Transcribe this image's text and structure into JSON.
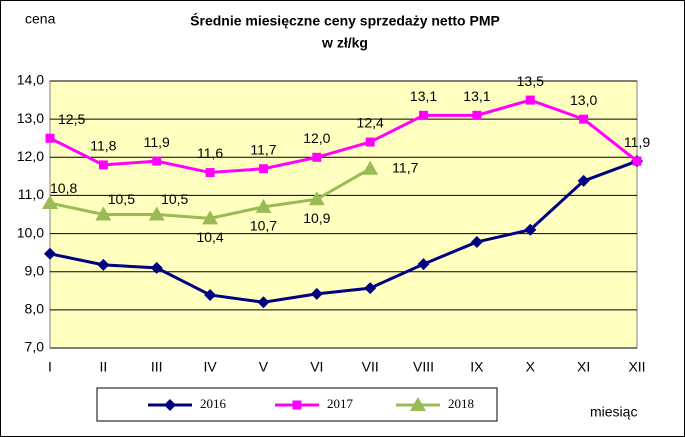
{
  "chart_data": {
    "type": "line",
    "title": "Średnie miesięczne ceny sprzedaży netto PMP",
    "subtitle": "w zł/kg",
    "y_label": "cena",
    "x_label": "miesiąc",
    "categories": [
      "I",
      "II",
      "III",
      "IV",
      "V",
      "VI",
      "VII",
      "VIII",
      "IX",
      "X",
      "XI",
      "XII"
    ],
    "ylim": [
      7,
      14
    ],
    "yticks": [
      {
        "value": 7,
        "label": "7,0"
      },
      {
        "value": 8,
        "label": "8,0"
      },
      {
        "value": 9,
        "label": "9,0"
      },
      {
        "value": 10,
        "label": "10,0"
      },
      {
        "value": 11,
        "label": "11,0"
      },
      {
        "value": 12,
        "label": "12,0"
      },
      {
        "value": 13,
        "label": "13,0"
      },
      {
        "value": 14,
        "label": "14,0"
      }
    ],
    "grid": true,
    "legend": "bottom",
    "series": [
      {
        "name": "2016",
        "color": "#000080",
        "marker": "diamond",
        "values": [
          9.47,
          9.18,
          9.1,
          8.39,
          8.2,
          8.42,
          8.57,
          9.2,
          9.78,
          10.1,
          11.38,
          11.9
        ]
      },
      {
        "name": "2017",
        "color": "#ff00ff",
        "marker": "square",
        "values": [
          12.5,
          11.8,
          11.9,
          11.6,
          11.7,
          12.0,
          12.4,
          13.1,
          13.1,
          13.5,
          13.0,
          11.9
        ],
        "value_labels": [
          "12,5",
          "11,8",
          "11,9",
          "11,6",
          "11,7",
          "12,0",
          "12,4",
          "13,1",
          "13,1",
          "13,5",
          "13,0",
          "11,9"
        ]
      },
      {
        "name": "2018",
        "color": "#99bb55",
        "marker": "triangle",
        "values": [
          10.8,
          10.5,
          10.5,
          10.4,
          10.7,
          10.9,
          11.7,
          null,
          null,
          null,
          null,
          null
        ],
        "value_labels": [
          "10,8",
          "10,5",
          "10,5",
          "10,4",
          "10,7",
          "10,9",
          "11,7",
          null,
          null,
          null,
          null,
          null
        ]
      }
    ]
  }
}
